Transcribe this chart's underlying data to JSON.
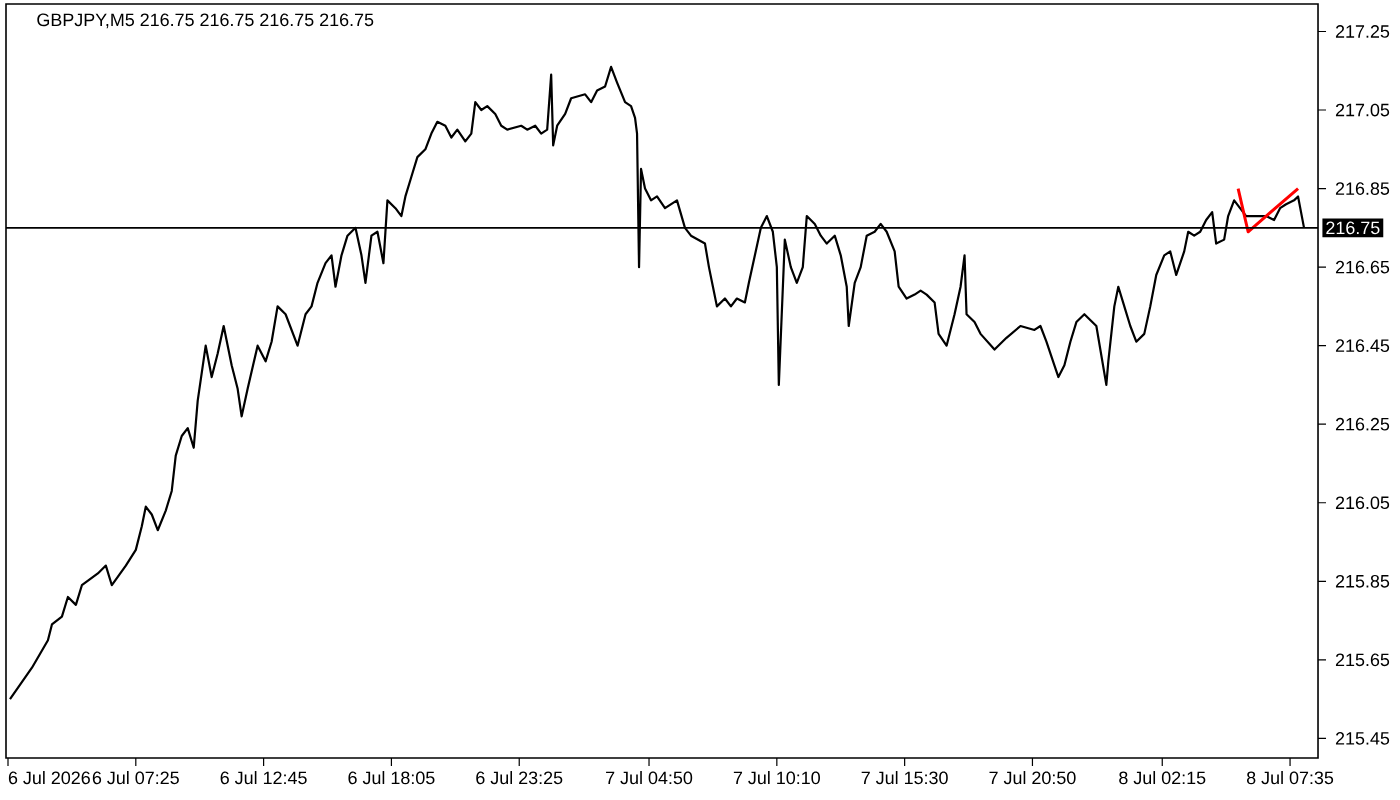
{
  "chart_data": {
    "type": "line",
    "title": "GBPJPY,M5 216.75 216.75 216.75 216.75",
    "xlim": [
      "2026-07-06T02:00",
      "2026-07-08T08:45"
    ],
    "xticks": [
      {
        "value": "2026-07-06T02:05",
        "label": "6 Jul 2026"
      },
      {
        "value": "2026-07-06T07:25",
        "label": "6 Jul 07:25"
      },
      {
        "value": "2026-07-06T12:45",
        "label": "6 Jul 12:45"
      },
      {
        "value": "2026-07-06T18:05",
        "label": "6 Jul 18:05"
      },
      {
        "value": "2026-07-06T23:25",
        "label": "6 Jul 23:25"
      },
      {
        "value": "2026-07-07T04:50",
        "label": "7 Jul 04:50"
      },
      {
        "value": "2026-07-07T10:10",
        "label": "7 Jul 10:10"
      },
      {
        "value": "2026-07-07T15:30",
        "label": "7 Jul 15:30"
      },
      {
        "value": "2026-07-07T20:50",
        "label": "7 Jul 20:50"
      },
      {
        "value": "2026-07-08T02:15",
        "label": "8 Jul 02:15"
      },
      {
        "value": "2026-07-08T07:35",
        "label": "8 Jul 07:35"
      }
    ],
    "ylim": [
      215.4,
      217.32
    ],
    "yticks": [
      215.45,
      215.65,
      215.85,
      216.05,
      216.25,
      216.45,
      216.65,
      216.85,
      217.05,
      217.25
    ],
    "ref_lines": [
      {
        "axis": "y",
        "value": 216.75,
        "label": "216.75",
        "color": "#000000"
      }
    ],
    "series": [
      {
        "color": "#000000",
        "x": [
          "2026-07-06T02:10",
          "2026-07-06T03:05",
          "2026-07-06T03:45",
          "2026-07-06T03:55",
          "2026-07-06T04:20",
          "2026-07-06T04:35",
          "2026-07-06T04:55",
          "2026-07-06T05:10",
          "2026-07-06T05:50",
          "2026-07-06T06:10",
          "2026-07-06T06:25",
          "2026-07-06T07:00",
          "2026-07-06T07:25",
          "2026-07-06T07:40",
          "2026-07-06T07:50",
          "2026-07-06T08:05",
          "2026-07-06T08:20",
          "2026-07-06T08:40",
          "2026-07-06T08:55",
          "2026-07-06T09:05",
          "2026-07-06T09:20",
          "2026-07-06T09:35",
          "2026-07-06T09:50",
          "2026-07-06T10:00",
          "2026-07-06T10:20",
          "2026-07-06T10:35",
          "2026-07-06T10:50",
          "2026-07-06T11:05",
          "2026-07-06T11:25",
          "2026-07-06T11:40",
          "2026-07-06T11:50",
          "2026-07-06T12:05",
          "2026-07-06T12:30",
          "2026-07-06T12:50",
          "2026-07-06T13:05",
          "2026-07-06T13:20",
          "2026-07-06T13:40",
          "2026-07-06T14:10",
          "2026-07-06T14:30",
          "2026-07-06T14:45",
          "2026-07-06T15:00",
          "2026-07-06T15:20",
          "2026-07-06T15:35",
          "2026-07-06T15:45",
          "2026-07-06T16:00",
          "2026-07-06T16:15",
          "2026-07-06T16:35",
          "2026-07-06T16:50",
          "2026-07-06T17:00",
          "2026-07-06T17:15",
          "2026-07-06T17:30",
          "2026-07-06T17:45",
          "2026-07-06T17:55",
          "2026-07-06T18:15",
          "2026-07-06T18:30",
          "2026-07-06T18:40",
          "2026-07-06T18:55",
          "2026-07-06T19:10",
          "2026-07-06T19:30",
          "2026-07-06T19:45",
          "2026-07-06T20:00",
          "2026-07-06T20:20",
          "2026-07-06T20:35",
          "2026-07-06T20:50",
          "2026-07-06T21:10",
          "2026-07-06T21:25",
          "2026-07-06T21:35",
          "2026-07-06T21:50",
          "2026-07-06T22:05",
          "2026-07-06T22:25",
          "2026-07-06T22:40",
          "2026-07-06T22:55",
          "2026-07-06T23:30",
          "2026-07-06T23:45",
          "2026-07-07T00:05",
          "2026-07-07T00:20",
          "2026-07-07T00:35",
          "2026-07-07T00:45",
          "2026-07-07T00:50",
          "2026-07-07T01:00",
          "2026-07-07T01:20",
          "2026-07-07T01:35",
          "2026-07-07T02:10",
          "2026-07-07T02:25",
          "2026-07-07T02:40",
          "2026-07-07T03:00",
          "2026-07-07T03:15",
          "2026-07-07T03:30",
          "2026-07-07T03:50",
          "2026-07-07T04:05",
          "2026-07-07T04:15",
          "2026-07-07T04:20",
          "2026-07-07T04:25",
          "2026-07-07T04:30",
          "2026-07-07T04:40",
          "2026-07-07T04:55",
          "2026-07-07T05:10",
          "2026-07-07T05:30",
          "2026-07-07T06:00",
          "2026-07-07T06:20",
          "2026-07-07T06:35",
          "2026-07-07T07:10",
          "2026-07-07T07:20",
          "2026-07-07T07:30",
          "2026-07-07T07:40",
          "2026-07-07T08:00",
          "2026-07-07T08:15",
          "2026-07-07T08:30",
          "2026-07-07T08:50",
          "2026-07-07T09:00",
          "2026-07-07T09:15",
          "2026-07-07T09:30",
          "2026-07-07T09:45",
          "2026-07-07T10:00",
          "2026-07-07T10:10",
          "2026-07-07T10:15",
          "2026-07-07T10:30",
          "2026-07-07T10:45",
          "2026-07-07T11:00",
          "2026-07-07T11:15",
          "2026-07-07T11:25",
          "2026-07-07T11:45",
          "2026-07-07T12:00",
          "2026-07-07T12:15",
          "2026-07-07T12:35",
          "2026-07-07T12:50",
          "2026-07-07T13:05",
          "2026-07-07T13:10",
          "2026-07-07T13:25",
          "2026-07-07T13:40",
          "2026-07-07T13:55",
          "2026-07-07T14:15",
          "2026-07-07T14:30",
          "2026-07-07T14:45",
          "2026-07-07T15:05",
          "2026-07-07T15:15",
          "2026-07-07T15:35",
          "2026-07-07T15:55",
          "2026-07-07T16:10",
          "2026-07-07T16:25",
          "2026-07-07T16:45",
          "2026-07-07T16:55",
          "2026-07-07T17:15",
          "2026-07-07T17:35",
          "2026-07-07T17:50",
          "2026-07-07T18:00",
          "2026-07-07T18:05",
          "2026-07-07T18:25",
          "2026-07-07T18:40",
          "2026-07-07T19:15",
          "2026-07-07T19:45",
          "2026-07-07T20:20",
          "2026-07-07T20:55",
          "2026-07-07T21:10",
          "2026-07-07T21:25",
          "2026-07-07T21:45",
          "2026-07-07T21:55",
          "2026-07-07T22:10",
          "2026-07-07T22:25",
          "2026-07-07T22:40",
          "2026-07-07T23:00",
          "2026-07-07T23:30",
          "2026-07-07T23:55",
          "2026-07-08T00:00",
          "2026-07-08T00:15",
          "2026-07-08T00:25",
          "2026-07-08T00:40",
          "2026-07-08T00:55",
          "2026-07-08T01:10",
          "2026-07-08T01:30",
          "2026-07-08T01:45",
          "2026-07-08T02:00",
          "2026-07-08T02:20",
          "2026-07-08T02:35",
          "2026-07-08T02:50",
          "2026-07-08T03:10",
          "2026-07-08T03:20",
          "2026-07-08T03:35",
          "2026-07-08T03:50",
          "2026-07-08T04:05",
          "2026-07-08T04:20",
          "2026-07-08T04:30",
          "2026-07-08T04:50",
          "2026-07-08T05:00",
          "2026-07-08T05:15",
          "2026-07-08T05:30",
          "2026-07-08T05:45",
          "2026-07-08T06:05",
          "2026-07-08T06:35",
          "2026-07-08T06:55",
          "2026-07-08T07:10",
          "2026-07-08T07:25",
          "2026-07-08T07:45",
          "2026-07-08T07:55",
          "2026-07-08T08:10"
        ],
        "values": [
          215.55,
          215.63,
          215.7,
          215.74,
          215.76,
          215.81,
          215.79,
          215.84,
          215.87,
          215.89,
          215.84,
          215.89,
          215.93,
          215.99,
          216.04,
          216.02,
          215.98,
          216.03,
          216.08,
          216.17,
          216.22,
          216.24,
          216.19,
          216.31,
          216.45,
          216.37,
          216.43,
          216.5,
          216.4,
          216.34,
          216.27,
          216.34,
          216.45,
          216.41,
          216.46,
          216.55,
          216.53,
          216.45,
          216.53,
          216.55,
          216.61,
          216.66,
          216.68,
          216.6,
          216.68,
          216.73,
          216.75,
          216.68,
          216.61,
          216.73,
          216.74,
          216.66,
          216.82,
          216.8,
          216.78,
          216.83,
          216.88,
          216.93,
          216.95,
          216.99,
          217.02,
          217.01,
          216.98,
          217.0,
          216.97,
          216.99,
          217.07,
          217.05,
          217.06,
          217.04,
          217.01,
          217.0,
          217.01,
          217.0,
          217.01,
          216.99,
          217.0,
          217.14,
          216.96,
          217.01,
          217.04,
          217.08,
          217.09,
          217.07,
          217.1,
          217.11,
          217.16,
          217.12,
          217.07,
          217.06,
          217.03,
          216.99,
          216.65,
          216.9,
          216.85,
          216.82,
          216.83,
          216.8,
          216.82,
          216.75,
          216.73,
          216.71,
          216.65,
          216.6,
          216.55,
          216.57,
          216.55,
          216.57,
          216.56,
          216.61,
          216.68,
          216.75,
          216.78,
          216.74,
          216.65,
          216.35,
          216.72,
          216.65,
          216.61,
          216.65,
          216.78,
          216.76,
          216.73,
          216.71,
          216.73,
          216.68,
          216.6,
          216.5,
          216.61,
          216.65,
          216.73,
          216.74,
          216.76,
          216.74,
          216.69,
          216.6,
          216.57,
          216.58,
          216.59,
          216.58,
          216.56,
          216.48,
          216.45,
          216.53,
          216.6,
          216.68,
          216.53,
          216.51,
          216.48,
          216.44,
          216.47,
          216.5,
          216.49,
          216.5,
          216.46,
          216.4,
          216.37,
          216.4,
          216.46,
          216.51,
          216.53,
          216.5,
          216.35,
          216.41,
          216.55,
          216.6,
          216.55,
          216.5,
          216.46,
          216.48,
          216.55,
          216.63,
          216.68,
          216.69,
          216.63,
          216.69,
          216.74,
          216.73,
          216.74,
          216.77,
          216.79,
          216.71,
          216.72,
          216.78,
          216.82,
          216.8,
          216.78,
          216.78,
          216.78,
          216.77,
          216.8,
          216.81,
          216.82,
          216.83,
          216.75
        ]
      },
      {
        "color": "#ff0000",
        "x": [
          "2026-07-08T05:25",
          "2026-07-08T05:50",
          "2026-07-08T07:55"
        ],
        "values": [
          216.85,
          216.74,
          216.85
        ]
      }
    ]
  }
}
